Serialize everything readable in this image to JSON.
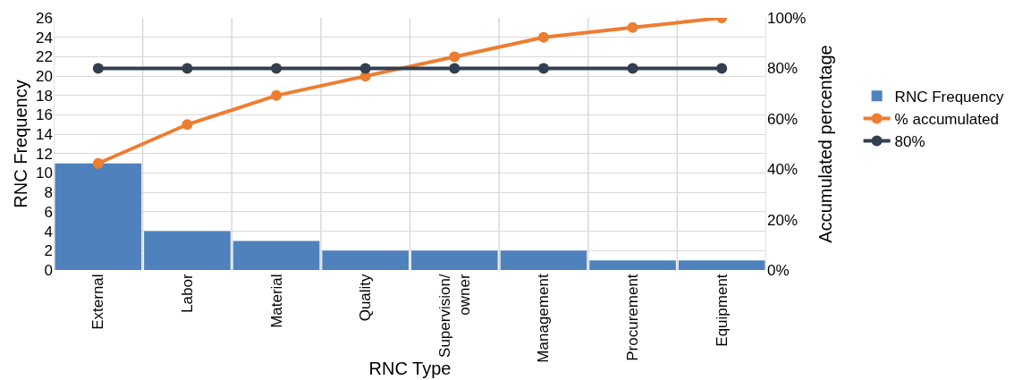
{
  "chart_data": {
    "type": "bar",
    "xlabel": "RNC Type",
    "ylabel": "RNC Frequency",
    "y2label": "Accumulated percentage",
    "categories": [
      "External",
      "Labor",
      "Material",
      "Quality",
      "Supervision/\nowner",
      "Management",
      "Procurement",
      "Equipment"
    ],
    "series": [
      {
        "name": "RNC Frequency",
        "color": "#4f81bd",
        "values": [
          11,
          4,
          3,
          2,
          2,
          2,
          1,
          1
        ]
      },
      {
        "name": "% accumulated",
        "type": "line",
        "axis": "y2",
        "color": "#ed7d31",
        "values": [
          42.3,
          57.7,
          69.2,
          76.9,
          84.6,
          92.3,
          96.2,
          100
        ]
      },
      {
        "name": "80%",
        "type": "line",
        "axis": "y2",
        "color": "#333f50",
        "values": [
          80,
          80,
          80,
          80,
          80,
          80,
          80,
          80
        ]
      }
    ],
    "ylim": [
      0,
      26
    ],
    "yticks": [
      0,
      2,
      4,
      6,
      8,
      10,
      12,
      14,
      16,
      18,
      20,
      22,
      24,
      26
    ],
    "y2lim": [
      0,
      100
    ],
    "y2ticks": [
      {
        "value": 0,
        "label": "0%"
      },
      {
        "value": 20,
        "label": "20%"
      },
      {
        "value": 40,
        "label": "40%"
      },
      {
        "value": 60,
        "label": "60%"
      },
      {
        "value": 80,
        "label": "80%"
      },
      {
        "value": 100,
        "label": "100%"
      }
    ],
    "grid": true,
    "legend": "right",
    "marker": "circle",
    "line_style": "solid"
  }
}
